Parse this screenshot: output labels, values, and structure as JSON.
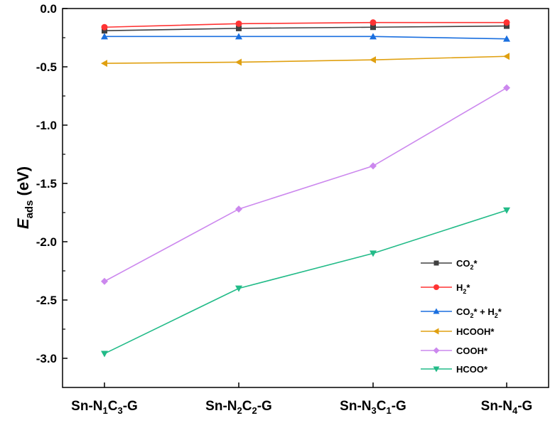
{
  "chart_data": {
    "type": "line",
    "title": "",
    "ylabel": {
      "main": "E",
      "sub": "ads",
      "unit": " (eV)"
    },
    "xlabel": "",
    "ylim": [
      -3.25,
      0.0
    ],
    "yticks": [
      0.0,
      -0.5,
      -1.0,
      -1.5,
      -2.0,
      -2.5,
      -3.0
    ],
    "ytick_labels": [
      "0.0",
      "-0.5",
      "-1.0",
      "-1.5",
      "-2.0",
      "-2.5",
      "-3.0"
    ],
    "categories": [
      {
        "pre": "Sn-N",
        "s1": "1",
        "mid": "C",
        "s2": "3",
        "post": "-G"
      },
      {
        "pre": "Sn-N",
        "s1": "2",
        "mid": "C",
        "s2": "2",
        "post": "-G"
      },
      {
        "pre": "Sn-N",
        "s1": "3",
        "mid": "C",
        "s2": "1",
        "post": "-G"
      },
      {
        "pre": "Sn-N",
        "s1": "4",
        "mid": "",
        "s2": "",
        "post": "-G"
      }
    ],
    "grid": false,
    "legend_position": "bottom-right",
    "series": [
      {
        "name": {
          "a": "CO",
          "sub": "2",
          "b": "*"
        },
        "marker": "square",
        "color": "#404040",
        "values": [
          -0.19,
          -0.17,
          -0.16,
          -0.15
        ]
      },
      {
        "name": {
          "a": "H",
          "sub": "2",
          "b": "*"
        },
        "marker": "circle",
        "color": "#ff3333",
        "values": [
          -0.16,
          -0.13,
          -0.12,
          -0.12
        ]
      },
      {
        "name": {
          "a": "CO",
          "sub": "2",
          "b": "* + H",
          "sub2": "2",
          "c": "*"
        },
        "marker": "triangle-up",
        "color": "#1a6fdf",
        "values": [
          -0.24,
          -0.24,
          -0.24,
          -0.26
        ]
      },
      {
        "name": {
          "a": "HCOOH*"
        },
        "marker": "triangle-left",
        "color": "#e0a010",
        "values": [
          -0.47,
          -0.46,
          -0.44,
          -0.41
        ]
      },
      {
        "name": {
          "a": "COOH*"
        },
        "marker": "diamond",
        "color": "#cc88ee",
        "values": [
          -2.34,
          -1.72,
          -1.35,
          -0.68
        ]
      },
      {
        "name": {
          "a": "HCOO*"
        },
        "marker": "triangle-down",
        "color": "#22bb88",
        "values": [
          -2.96,
          -2.4,
          -2.1,
          -1.73
        ]
      }
    ]
  }
}
